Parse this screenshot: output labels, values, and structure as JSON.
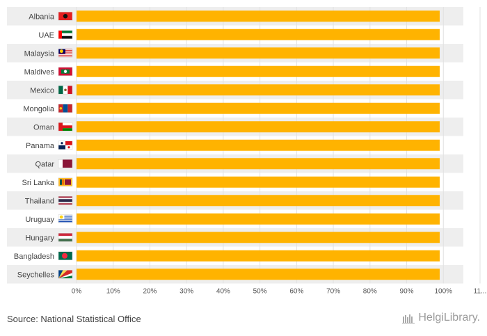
{
  "chart_data": {
    "type": "bar",
    "orientation": "horizontal",
    "categories": [
      "Albania",
      "UAE",
      "Malaysia",
      "Maldives",
      "Mexico",
      "Mongolia",
      "Oman",
      "Panama",
      "Qatar",
      "Sri Lanka",
      "Thailand",
      "Uruguay",
      "Hungary",
      "Bangladesh",
      "Seychelles"
    ],
    "values": [
      99,
      99,
      99,
      99,
      99,
      99,
      99,
      99,
      99,
      99,
      99,
      99,
      99,
      99,
      99
    ],
    "flags": [
      "albania",
      "uae",
      "malaysia",
      "maldives",
      "mexico",
      "mongolia",
      "oman",
      "panama",
      "qatar",
      "sri-lanka",
      "thailand",
      "uruguay",
      "hungary",
      "bangladesh",
      "seychelles"
    ],
    "xlim": [
      0,
      110
    ],
    "ticks": [
      "0%",
      "10%",
      "20%",
      "30%",
      "40%",
      "50%",
      "60%",
      "70%",
      "80%",
      "90%",
      "100%",
      "11..."
    ],
    "bar_color": "#FFB300",
    "row_band_color": "#EEEEEE",
    "grid": true
  },
  "footer": {
    "source": "Source: National Statistical Office",
    "brand": "HelgiLibrary."
  }
}
